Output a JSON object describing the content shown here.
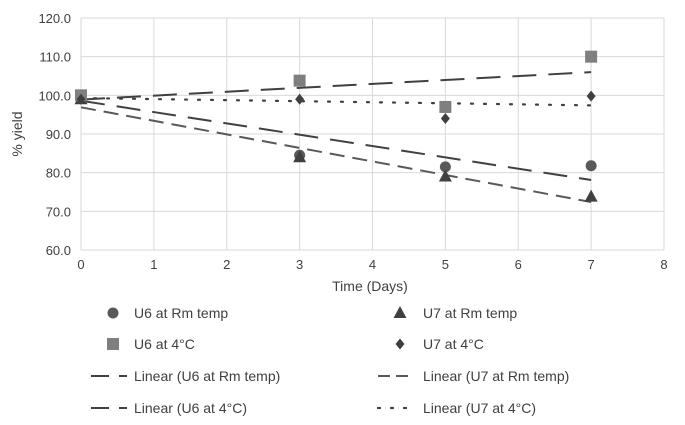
{
  "chart_data": {
    "type": "scatter",
    "xlabel": "Time (Days)",
    "ylabel": "% yield",
    "xlim": [
      0,
      8
    ],
    "ylim": [
      60,
      120
    ],
    "x_ticks": [
      "0",
      "1",
      "2",
      "3",
      "4",
      "5",
      "6",
      "7",
      "8"
    ],
    "y_ticks": [
      "60.0",
      "70.0",
      "80.0",
      "90.0",
      "100.0",
      "110.0",
      "120.0"
    ],
    "grid": true,
    "legend_position": "bottom",
    "series": [
      {
        "name": "U6 at Rm temp",
        "marker": "circle",
        "color": "#595959",
        "x": [
          0,
          3,
          5,
          7
        ],
        "y": [
          99.5,
          84.5,
          81.5,
          81.8
        ]
      },
      {
        "name": "U7 at Rm temp",
        "marker": "triangle",
        "color": "#404040",
        "x": [
          0,
          3,
          5,
          7
        ],
        "y": [
          99.0,
          84.0,
          79.0,
          73.8
        ]
      },
      {
        "name": "U6 at 4°C",
        "marker": "square",
        "color": "#7f7f7f",
        "x": [
          0,
          3,
          5,
          7
        ],
        "y": [
          100.0,
          103.8,
          97.0,
          110.0
        ]
      },
      {
        "name": "U7 at 4°C",
        "marker": "diamond",
        "color": "#404040",
        "x": [
          0,
          3,
          5,
          7
        ],
        "y": [
          99.0,
          99.0,
          94.0,
          99.8
        ]
      }
    ],
    "trendlines": [
      {
        "name": "Linear (U6 at Rm temp)",
        "style": "long-dash",
        "color": "#404040",
        "x": [
          0,
          7
        ],
        "y": [
          98.6,
          78.1
        ]
      },
      {
        "name": "Linear (U7 at Rm temp)",
        "style": "dash",
        "color": "#595959",
        "x": [
          0,
          7
        ],
        "y": [
          96.9,
          72.4
        ]
      },
      {
        "name": "Linear (U6 at 4°C)",
        "style": "long-dash",
        "color": "#404040",
        "x": [
          0,
          7
        ],
        "y": [
          98.9,
          106.0
        ]
      },
      {
        "name": "Linear (U7 at 4°C)",
        "style": "dot",
        "color": "#404040",
        "x": [
          0,
          7
        ],
        "y": [
          99.3,
          97.4
        ]
      }
    ]
  }
}
